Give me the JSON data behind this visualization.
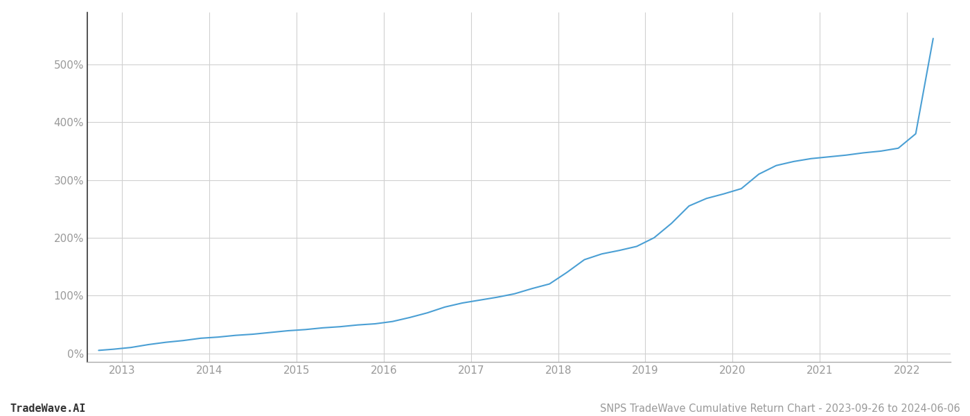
{
  "title": "SNPS TradeWave Cumulative Return Chart - 2023-09-26 to 2024-06-06",
  "watermark": "TradeWave.AI",
  "line_color": "#4a9fd4",
  "background_color": "#ffffff",
  "grid_color": "#d0d0d0",
  "x_years": [
    2013,
    2014,
    2015,
    2016,
    2017,
    2018,
    2019,
    2020,
    2021,
    2022
  ],
  "x_data": [
    2012.73,
    2012.9,
    2013.1,
    2013.3,
    2013.5,
    2013.7,
    2013.9,
    2014.1,
    2014.3,
    2014.5,
    2014.7,
    2014.9,
    2015.1,
    2015.3,
    2015.5,
    2015.7,
    2015.9,
    2016.1,
    2016.3,
    2016.5,
    2016.7,
    2016.9,
    2017.1,
    2017.3,
    2017.5,
    2017.7,
    2017.9,
    2018.1,
    2018.3,
    2018.5,
    2018.7,
    2018.9,
    2019.1,
    2019.3,
    2019.5,
    2019.7,
    2019.9,
    2020.1,
    2020.3,
    2020.5,
    2020.7,
    2020.9,
    2021.1,
    2021.3,
    2021.5,
    2021.7,
    2021.9,
    2022.1,
    2022.3
  ],
  "y_data": [
    5,
    7,
    10,
    15,
    19,
    22,
    26,
    28,
    31,
    33,
    36,
    39,
    41,
    44,
    46,
    49,
    51,
    55,
    62,
    70,
    80,
    87,
    92,
    97,
    103,
    112,
    120,
    140,
    162,
    172,
    178,
    185,
    200,
    225,
    255,
    268,
    276,
    285,
    310,
    325,
    332,
    337,
    340,
    343,
    347,
    350,
    355,
    380,
    545
  ],
  "ylim": [
    -15,
    590
  ],
  "xlim": [
    2012.6,
    2022.5
  ],
  "yticks": [
    0,
    100,
    200,
    300,
    400,
    500
  ],
  "title_fontsize": 10.5,
  "watermark_fontsize": 11,
  "tick_fontsize": 11,
  "axis_text_color": "#999999",
  "spine_color": "#aaaaaa",
  "left_spine_color": "#333333"
}
